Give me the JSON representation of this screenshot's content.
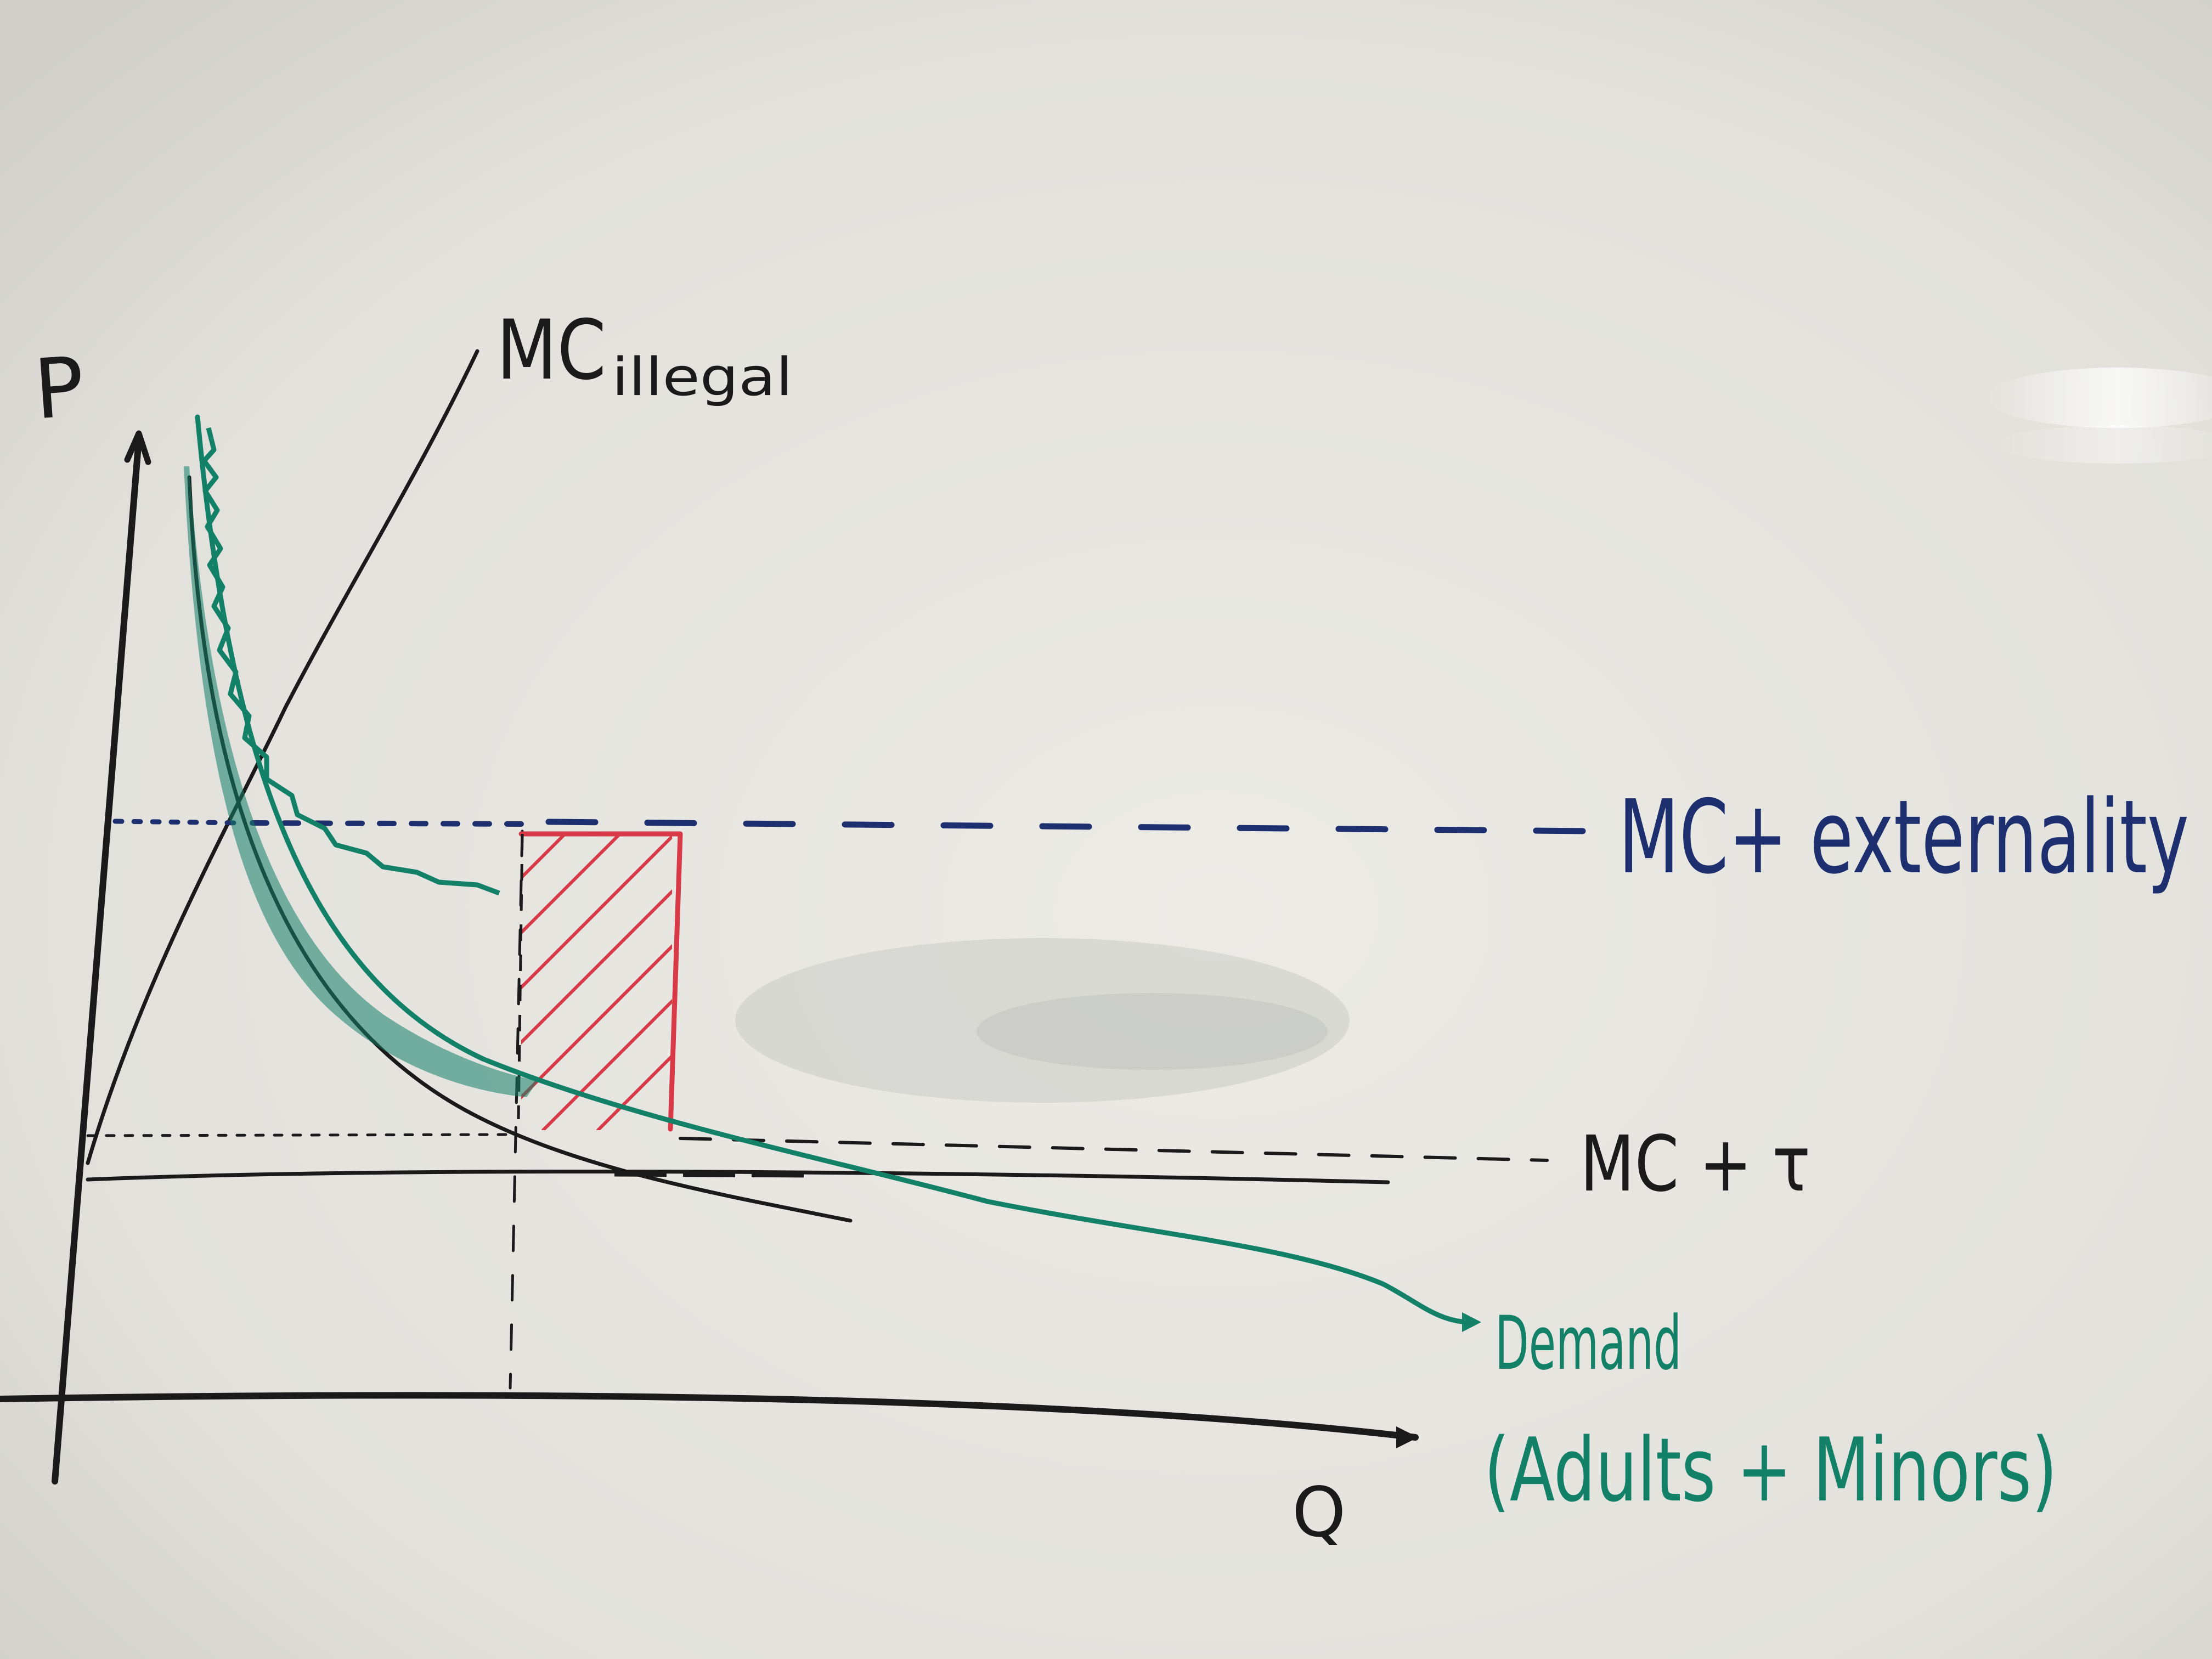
{
  "labels": {
    "p_axis": "P",
    "q_axis": "Q",
    "mc_illegal_main": "MC",
    "mc_illegal_sub": "illegal",
    "mc_externality": "MC+ externality",
    "mc_tau": "MC + τ",
    "demand": "Demand",
    "demand_sub": "(Adults + Minors)"
  },
  "colors": {
    "board": "#e6e5e0",
    "black_marker": "#1b1a1a",
    "blue_marker": "#1d2f6e",
    "green_marker": "#138068",
    "red_marker": "#d83a48"
  }
}
